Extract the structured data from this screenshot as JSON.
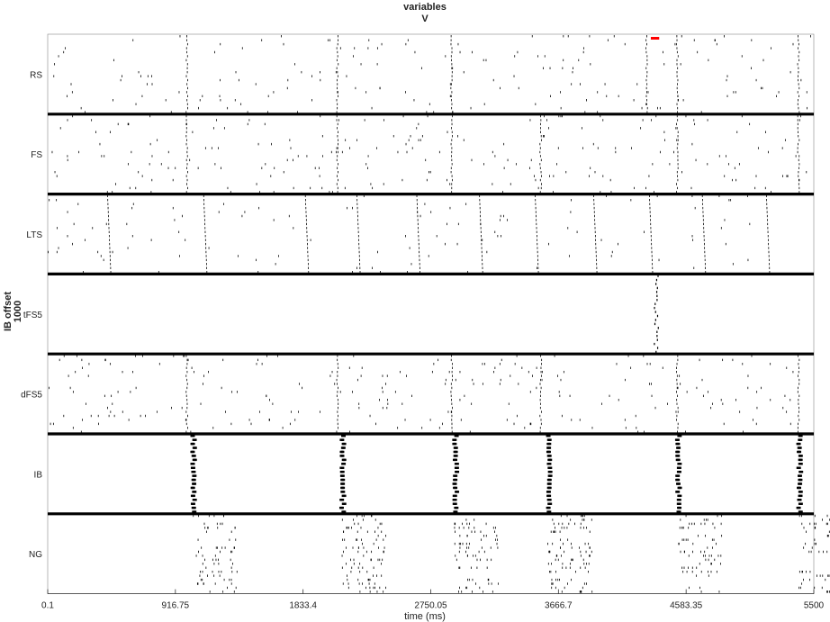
{
  "chart_data": {
    "type": "raster",
    "title_lines": [
      "variables",
      "V"
    ],
    "xlabel": "time (ms)",
    "ylabel_lines": [
      "IB offset",
      "1000"
    ],
    "xlim": [
      0.1,
      5500
    ],
    "xticks": [
      0.1,
      916.75,
      1833.4,
      2750.05,
      3666.7,
      4583.35,
      5500
    ],
    "xtick_labels": [
      "0.1",
      "916.75",
      "1833.4",
      "2750.05",
      "3666.7",
      "4583.35",
      "5500"
    ],
    "grid": false,
    "stimulus_marker": {
      "color": "#ff0000",
      "x_range": [
        4330,
        4390
      ]
    },
    "populations": [
      {
        "name": "RS",
        "color": "#000000",
        "cells": 20,
        "rate_per_s": 5,
        "sync_events": [
          1000,
          2080,
          2900,
          4300,
          4520,
          5390
        ]
      },
      {
        "name": "FS",
        "color": "#000000",
        "cells": 20,
        "rate_per_s": 6,
        "sync_events": [
          1000,
          2080,
          2900,
          3540,
          4520,
          5390
        ]
      },
      {
        "name": "LTS",
        "color": "#000000",
        "cells": 20,
        "rate_per_s": 3,
        "sync_events": [
          430,
          1120,
          1850,
          2220,
          2650,
          3100,
          3500,
          3920,
          4320,
          4700,
          5160
        ]
      },
      {
        "name": "tFS5",
        "color": "#000000",
        "cells": 20,
        "rate_per_s": 0,
        "sync_events": [
          4370
        ]
      },
      {
        "name": "dFS5",
        "color": "#000000",
        "cells": 20,
        "rate_per_s": 6,
        "sync_events": [
          1000,
          2080,
          2900,
          3540,
          4520,
          5390
        ]
      },
      {
        "name": "IB",
        "color": "#000000",
        "cells": 20,
        "rate_per_s": 0,
        "sync_events": [
          1040,
          2110,
          2920,
          3590,
          4520,
          5390
        ]
      },
      {
        "name": "NG",
        "color": "#000000",
        "cells": 20,
        "rate_per_s": 0,
        "sync_events": [
          1040,
          2110,
          2920,
          3590,
          4520,
          5390
        ]
      }
    ]
  }
}
